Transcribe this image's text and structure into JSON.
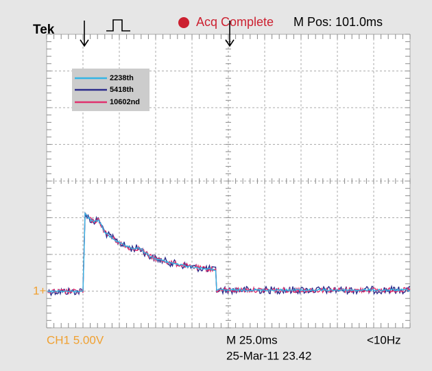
{
  "header": {
    "brand": "Tek",
    "status": "Acq Complete",
    "position": "M Pos: 101.0ms"
  },
  "legend": [
    "2238th",
    "5418th",
    "10602nd"
  ],
  "marker": "1+",
  "footer": {
    "channel": "CH1 5.00V",
    "timebase": "M 25.0ms",
    "timestamp": "25-Mar-11 23.42",
    "trigger": "<10Hz"
  }
}
